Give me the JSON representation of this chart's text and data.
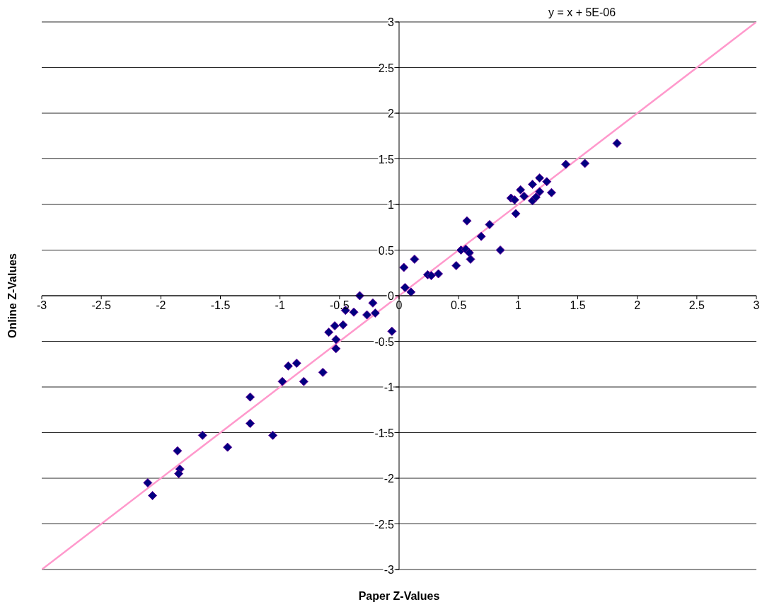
{
  "chart_data": {
    "type": "scatter",
    "xlabel": "Paper Z-Values",
    "ylabel": "Online Z-Values",
    "annotations": [
      "y = x + 5E-06"
    ],
    "xlim": [
      -3,
      3
    ],
    "ylim": [
      -3,
      3
    ],
    "xticks": [
      -3,
      -2.5,
      -2,
      -1.5,
      -1,
      -0.5,
      0,
      0.5,
      1,
      1.5,
      2,
      2.5,
      3
    ],
    "yticks": [
      -3,
      -2.5,
      -2,
      -1.5,
      -1,
      -0.5,
      0,
      0.5,
      1,
      1.5,
      2,
      2.5,
      3
    ],
    "grid": "y",
    "legend": false,
    "series": [
      {
        "color": "#000080",
        "marker": "diamond",
        "x": [
          -2.11,
          -2.07,
          -1.86,
          -1.84,
          -1.85,
          -1.65,
          -1.44,
          -1.25,
          -1.25,
          -1.06,
          -0.98,
          -0.93,
          -0.86,
          -0.8,
          -0.64,
          -0.59,
          -0.53,
          -0.53,
          -0.54,
          -0.47,
          -0.45,
          -0.38,
          -0.33,
          -0.27,
          -0.22,
          -0.2,
          -0.06,
          0.04,
          0.13,
          0.05,
          0.1,
          0.24,
          0.27,
          0.33,
          0.48,
          0.52,
          0.57,
          0.56,
          0.59,
          0.6,
          0.69,
          0.76,
          0.85,
          0.98,
          0.94,
          0.97,
          1.02,
          1.05,
          1.12,
          1.12,
          1.15,
          1.18,
          1.18,
          1.24,
          1.28,
          1.4,
          1.56,
          1.83
        ],
        "values": [
          -2.05,
          -2.19,
          -1.7,
          -1.9,
          -1.95,
          -1.53,
          -1.66,
          -1.11,
          -1.4,
          -1.53,
          -0.94,
          -0.77,
          -0.74,
          -0.94,
          -0.84,
          -0.4,
          -0.48,
          -0.58,
          -0.33,
          -0.32,
          -0.16,
          -0.18,
          0,
          -0.21,
          -0.08,
          -0.19,
          -0.39,
          0.31,
          0.4,
          0.09,
          0.04,
          0.23,
          0.22,
          0.24,
          0.33,
          0.5,
          0.82,
          0.51,
          0.47,
          0.4,
          0.65,
          0.78,
          0.5,
          0.9,
          1.07,
          1.05,
          1.16,
          1.09,
          1.22,
          1.04,
          1.08,
          1.14,
          1.29,
          1.25,
          1.13,
          1.44,
          1.45,
          1.67
        ]
      },
      {
        "type": "line",
        "color": "#ff99cc",
        "x": [
          -3,
          3
        ],
        "values": [
          -3,
          3
        ]
      }
    ]
  }
}
